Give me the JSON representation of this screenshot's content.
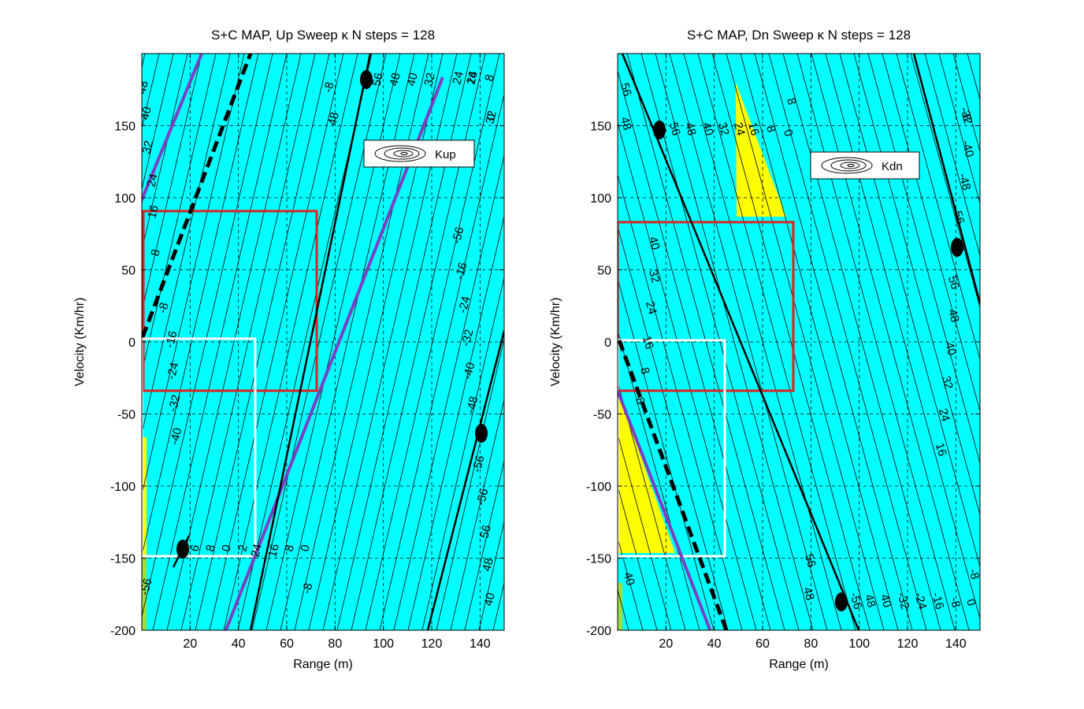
{
  "colors": {
    "background": "#00ffff",
    "highlight": "#ffff00",
    "line_purple": "#7b3fc4",
    "box_red": "#e02020",
    "box_white": "#ffffff",
    "contour": "#000000"
  },
  "chart_data": [
    {
      "type": "contour",
      "title": "S+C MAP, Up Sweep κ N steps = 128",
      "xlabel": "Range (m)",
      "ylabel": "Velocity (Km/hr)",
      "xlim": [
        0,
        150
      ],
      "ylim": [
        -200,
        200
      ],
      "xticks": [
        "20",
        "40",
        "60",
        "80",
        "100",
        "120",
        "140"
      ],
      "yticks": [
        "150",
        "100",
        "50",
        "0",
        "-50",
        "-100",
        "-150",
        "-200"
      ],
      "grid": true,
      "legend": {
        "label": "Kup",
        "placement": "top-right"
      },
      "contour_levels": [
        "48",
        "40",
        "32",
        "24",
        "16",
        "8",
        "-8",
        "-16",
        "-24",
        "-32",
        "-40",
        "-56",
        "6",
        "8",
        "0",
        "2",
        "24",
        "16",
        "8",
        "0",
        "-8",
        "56",
        "48",
        "40",
        "32",
        "24",
        "16",
        "8",
        "0",
        "-8",
        "48",
        "-56",
        "-16",
        "-24",
        "-32",
        "-40",
        "-48",
        "-56",
        "-56",
        "56",
        "48",
        "40",
        "32",
        "24",
        "-56",
        "-48"
      ],
      "purple_lines": [
        {
          "x": [
            -5,
            26
          ],
          "y": [
            80,
            200
          ]
        },
        {
          "x": [
            33,
            124
          ],
          "y": [
            -215,
            185
          ]
        }
      ],
      "dashed_line": {
        "x": [
          0,
          45
        ],
        "y": [
          0,
          200
        ]
      },
      "red_box": {
        "x": [
          0,
          73
        ],
        "y": [
          -35,
          88
        ]
      },
      "white_box": {
        "x": [
          0,
          48
        ],
        "y": [
          -150,
          0
        ]
      },
      "markers": [
        {
          "x": 93,
          "y": 182
        },
        {
          "x": 140,
          "y": -65
        },
        {
          "x": 17,
          "y": -147
        }
      ]
    },
    {
      "type": "contour",
      "title": "S+C MAP, Dn Sweep κ N steps = 128",
      "xlabel": "Range (m)",
      "ylabel": "Velocity (Km/hr)",
      "xlim": [
        0,
        150
      ],
      "ylim": [
        -200,
        200
      ],
      "xticks": [
        "20",
        "40",
        "60",
        "80",
        "100",
        "120",
        "140"
      ],
      "yticks": [
        "150",
        "100",
        "50",
        "0",
        "-50",
        "-100",
        "-150",
        "-200"
      ],
      "grid": true,
      "legend": {
        "label": "Kdn",
        "placement": "top-right"
      },
      "contour_levels": [
        "56",
        "48",
        "56",
        "48",
        "40",
        "32",
        "24",
        "16",
        "8",
        "0",
        "8",
        "-8",
        "40",
        "32",
        "24",
        "16",
        "8",
        "-32",
        "-40",
        "-48",
        "-56",
        "56",
        "48",
        "40",
        "32",
        "24",
        "16",
        "56",
        "48",
        "-56",
        "48",
        "40",
        "-32",
        "-24",
        "-16",
        "-8",
        "0",
        "-8",
        "40",
        "8"
      ],
      "purple_lines": [
        {
          "x": [
            0,
            42
          ],
          "y": [
            -40,
            -205
          ]
        }
      ],
      "dashed_line": {
        "x": [
          0,
          46
        ],
        "y": [
          0,
          -205
        ]
      },
      "red_box": {
        "x": [
          0,
          73
        ],
        "y": [
          -35,
          81
        ]
      },
      "white_box": {
        "x": [
          0,
          45
        ],
        "y": [
          -150,
          0
        ]
      },
      "markers": [
        {
          "x": 17,
          "y": 145
        },
        {
          "x": 140,
          "y": 63
        },
        {
          "x": 93,
          "y": -182
        }
      ]
    }
  ]
}
